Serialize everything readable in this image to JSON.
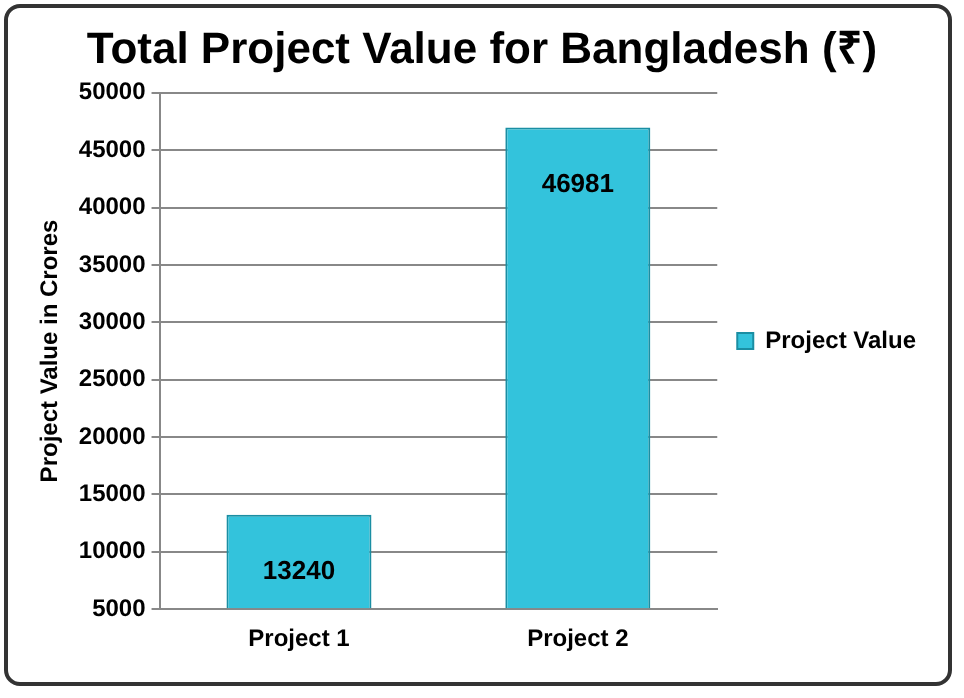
{
  "chart_data": {
    "type": "bar",
    "title": "Total Project Value for Bangladesh (₹)",
    "ylabel": "Project Value in Crores",
    "categories": [
      "Project 1",
      "Project 2"
    ],
    "series": [
      {
        "name": "Project Value",
        "color": "#33c3dc",
        "values": [
          13240,
          46981
        ]
      }
    ],
    "ylim": [
      5000,
      50000
    ],
    "yticks": [
      5000,
      10000,
      15000,
      20000,
      25000,
      30000,
      35000,
      40000,
      45000,
      50000
    ],
    "grid": "y",
    "legend": "right",
    "data_labels": true
  }
}
